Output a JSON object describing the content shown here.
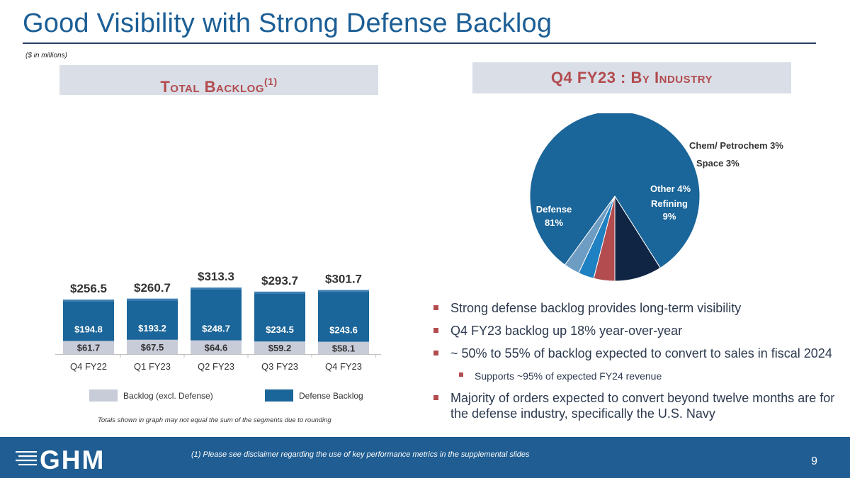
{
  "slide": {
    "title": "Good Visibility with Strong Defense Backlog",
    "units_note": "($ in millions)",
    "page_number": "9"
  },
  "left_header": {
    "text": "Total Backlog",
    "superscript": "(1)"
  },
  "right_header": {
    "text": "Q4 FY23 : By Industry"
  },
  "colors": {
    "defense": "#1a6599",
    "non_defense": "#c8ccd9",
    "accent_red": "#b24c4f",
    "navy": "#102544",
    "space": "#1f80c2",
    "chem": "#6e9dc4",
    "footer": "#1f5d92"
  },
  "chart_data": [
    {
      "type": "bar",
      "stacked": true,
      "title": "Total Backlog",
      "categories": [
        "Q4 FY22",
        "Q1 FY23",
        "Q2 FY23",
        "Q3 FY23",
        "Q4 FY23"
      ],
      "totals": [
        256.5,
        260.7,
        313.3,
        293.7,
        301.7
      ],
      "total_labels": [
        "$256.5",
        "$260.7",
        "$313.3",
        "$293.7",
        "$301.7"
      ],
      "series": [
        {
          "name": "Backlog (excl. Defense)",
          "values": [
            61.7,
            67.5,
            64.6,
            59.2,
            58.1
          ],
          "labels": [
            "$61.7",
            "$67.5",
            "$64.6",
            "$59.2",
            "$58.1"
          ]
        },
        {
          "name": "Defense Backlog",
          "values": [
            194.8,
            193.2,
            248.7,
            234.5,
            243.6
          ],
          "labels": [
            "$194.8",
            "$193.2",
            "$248.7",
            "$234.5",
            "$243.6"
          ]
        }
      ],
      "ylim": [
        0,
        350
      ],
      "xlabel": "",
      "ylabel": "",
      "legend": [
        "Backlog (excl. Defense)",
        "Defense Backlog"
      ],
      "note": "Totals shown in graph may not equal the sum of the segments due to rounding"
    },
    {
      "type": "pie",
      "title": "Q4 FY23 : By Industry",
      "slices": [
        {
          "name": "Refining",
          "label": "Refining",
          "pct_label": "9%",
          "value": 9
        },
        {
          "name": "Defense",
          "label": "Defense",
          "pct_label": "81%",
          "value": 81
        },
        {
          "name": "Chem/ Petrochem",
          "label": "Chem/ Petrochem 3%",
          "value": 3
        },
        {
          "name": "Space",
          "label": "Space 3%",
          "value": 3
        },
        {
          "name": "Other",
          "label": "Other 4%",
          "value": 4
        }
      ]
    }
  ],
  "bullets": [
    {
      "text": "Strong defense backlog provides long-term visibility",
      "level": 1
    },
    {
      "text": "Q4 FY23 backlog up 18% year-over-year",
      "level": 1
    },
    {
      "text": "~ 50% to 55% of backlog expected to convert to sales in fiscal 2024",
      "level": 1
    },
    {
      "text": "Supports ~95% of expected FY24 revenue",
      "level": 2
    },
    {
      "text": "Majority of orders expected to convert beyond twelve months are for the defense industry, specifically the U.S. Navy",
      "level": 1
    }
  ],
  "footer": {
    "logo_text": "GHM",
    "note": "(1) Please see disclaimer regarding the use of key performance metrics in the supplemental slides"
  }
}
